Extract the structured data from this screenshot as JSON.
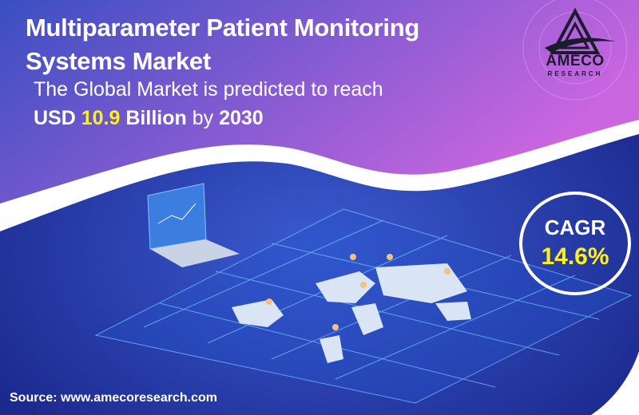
{
  "title_line1": "Multiparameter Patient Monitoring",
  "title_line2": "Systems Market",
  "subtitle": "The Global Market is predicted to reach",
  "value": {
    "prefix": "USD",
    "amount": "10.9",
    "unit": "Billion",
    "by": "by",
    "year": "2030"
  },
  "cagr": {
    "label": "CAGR",
    "value": "14.6%"
  },
  "logo": {
    "name": "AMECO",
    "tagline": "RESEARCH"
  },
  "source": "Source: www.amecoresearch.com",
  "colors": {
    "top_start": "#3b4fc4",
    "top_end": "#c466e0",
    "bottom": "#1f2f9a",
    "highlight": "#ffef1a"
  }
}
